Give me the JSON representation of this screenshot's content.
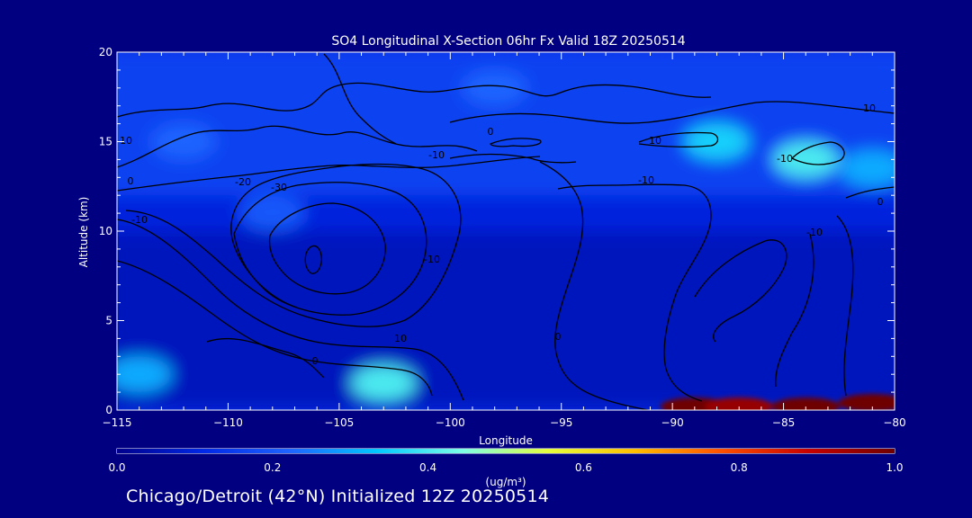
{
  "chart_data": {
    "type": "heatmap",
    "title": "SO4 Longitudinal X-Section 06hr  Fx Valid 18Z 20250514",
    "xlabel": "Longitude",
    "ylabel": "Altitude (km)",
    "xlim": [
      -115,
      -80
    ],
    "ylim": [
      0,
      20
    ],
    "x_ticks": [
      "-115",
      "-110",
      "-105",
      "-100",
      "-95",
      "-90",
      "-85",
      "-80"
    ],
    "y_ticks": [
      "0",
      "5",
      "10",
      "15",
      "20"
    ],
    "colorbar": {
      "label": "(ug/m³)",
      "range": [
        0.0,
        1.0
      ],
      "ticks": [
        "0.0",
        "0.2",
        "0.4",
        "0.6",
        "0.8",
        "1.0"
      ],
      "colormap": [
        "#00008c",
        "#0028e6",
        "#1e64ff",
        "#00c8ff",
        "#7dffe6",
        "#e6ff3c",
        "#ffbe00",
        "#ff5000",
        "#c80000",
        "#6e0000"
      ]
    },
    "background_value": 0.05,
    "features": [
      {
        "lon": -89,
        "alt": 0.2,
        "value": 1.0
      },
      {
        "lon": -87,
        "alt": 0.2,
        "value": 0.95
      },
      {
        "lon": -84,
        "alt": 0.2,
        "value": 1.0
      },
      {
        "lon": -81,
        "alt": 0.4,
        "value": 1.0
      },
      {
        "lon": -88,
        "alt": 15,
        "value": 0.35
      },
      {
        "lon": -84,
        "alt": 14,
        "value": 0.4
      },
      {
        "lon": -81,
        "alt": 13.5,
        "value": 0.3
      },
      {
        "lon": -103,
        "alt": 1.5,
        "value": 0.4
      },
      {
        "lon": -114,
        "alt": 2,
        "value": 0.3
      },
      {
        "lon": -98,
        "alt": 18,
        "value": 0.22
      },
      {
        "lon": -112,
        "alt": 15,
        "value": 0.22
      },
      {
        "lon": -108,
        "alt": 11,
        "value": 0.2
      }
    ],
    "contour_labels": [
      "10",
      "0",
      "-10",
      "-20",
      "-30",
      "10",
      "-10",
      "0",
      "-10",
      "0",
      "10",
      "-10",
      "-10",
      "10",
      "0",
      "-10",
      "0"
    ]
  },
  "footer": {
    "caption": "Chicago/Detroit (42°N) Initialized 12Z 20250514"
  }
}
